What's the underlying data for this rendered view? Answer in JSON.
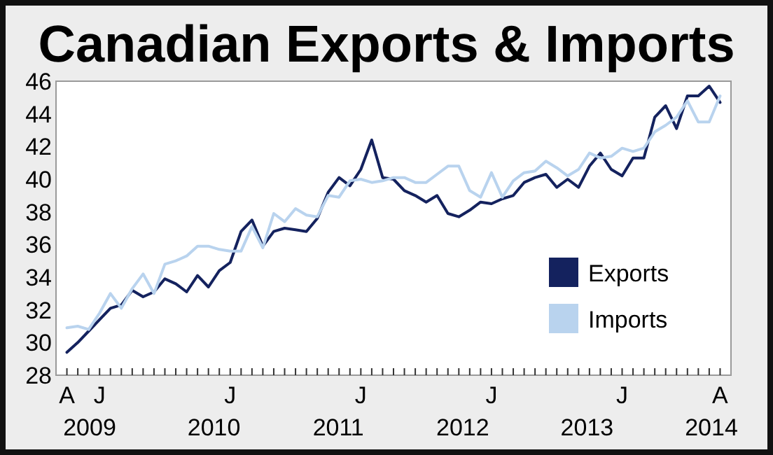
{
  "chart_data": {
    "type": "line",
    "title": "Canadian Exports & Imports",
    "categories": [
      "A",
      null,
      null,
      "J",
      null,
      null,
      null,
      null,
      null,
      null,
      null,
      null,
      null,
      null,
      null,
      "J",
      null,
      null,
      null,
      null,
      null,
      null,
      null,
      null,
      null,
      null,
      null,
      "J",
      null,
      null,
      null,
      null,
      null,
      null,
      null,
      null,
      null,
      null,
      null,
      "J",
      null,
      null,
      null,
      null,
      null,
      null,
      null,
      null,
      null,
      null,
      null,
      "J",
      null,
      null,
      null,
      null,
      null,
      null,
      null,
      null,
      "A"
    ],
    "series": [
      {
        "name": "Exports",
        "color": "#14225e",
        "values": [
          29.4,
          30.0,
          30.7,
          31.4,
          32.1,
          32.3,
          33.2,
          32.8,
          33.1,
          33.9,
          33.6,
          33.1,
          34.1,
          33.4,
          34.4,
          34.9,
          36.8,
          37.5,
          35.9,
          36.8,
          37.0,
          36.9,
          36.8,
          37.6,
          39.2,
          40.1,
          39.6,
          40.6,
          42.4,
          40.1,
          40.0,
          39.3,
          39.0,
          38.6,
          39.0,
          37.9,
          37.7,
          38.1,
          38.6,
          38.5,
          38.8,
          39.0,
          39.8,
          40.1,
          40.3,
          39.5,
          40.0,
          39.5,
          40.8,
          41.6,
          40.6,
          40.2,
          41.3,
          41.3,
          43.8,
          44.5,
          43.1,
          45.1,
          45.1,
          45.7,
          44.7
        ]
      },
      {
        "name": "Imports",
        "color": "#b9d3ee",
        "values": [
          30.9,
          31.0,
          30.8,
          31.8,
          33.0,
          32.1,
          33.3,
          34.2,
          33.0,
          34.8,
          35.0,
          35.3,
          35.9,
          35.9,
          35.7,
          35.6,
          35.6,
          37.1,
          35.8,
          37.9,
          37.4,
          38.2,
          37.8,
          37.7,
          39.0,
          38.9,
          39.9,
          40.0,
          39.8,
          39.9,
          40.1,
          40.1,
          39.8,
          39.8,
          40.3,
          40.8,
          40.8,
          39.3,
          38.9,
          40.4,
          38.9,
          39.9,
          40.4,
          40.5,
          41.1,
          40.7,
          40.2,
          40.6,
          41.6,
          41.3,
          41.4,
          41.9,
          41.7,
          41.9,
          42.9,
          43.3,
          43.8,
          44.8,
          43.5,
          43.5,
          45.1
        ]
      }
    ],
    "ylim": [
      28,
      46
    ],
    "yticks": [
      28,
      30,
      32,
      34,
      36,
      38,
      40,
      42,
      44,
      46
    ],
    "annotations": [
      "2009",
      "2010",
      "2011",
      "2012",
      "2013",
      "2014"
    ],
    "grid": false,
    "legend": "bottom right",
    "marker": "none",
    "line_style": "solid"
  }
}
